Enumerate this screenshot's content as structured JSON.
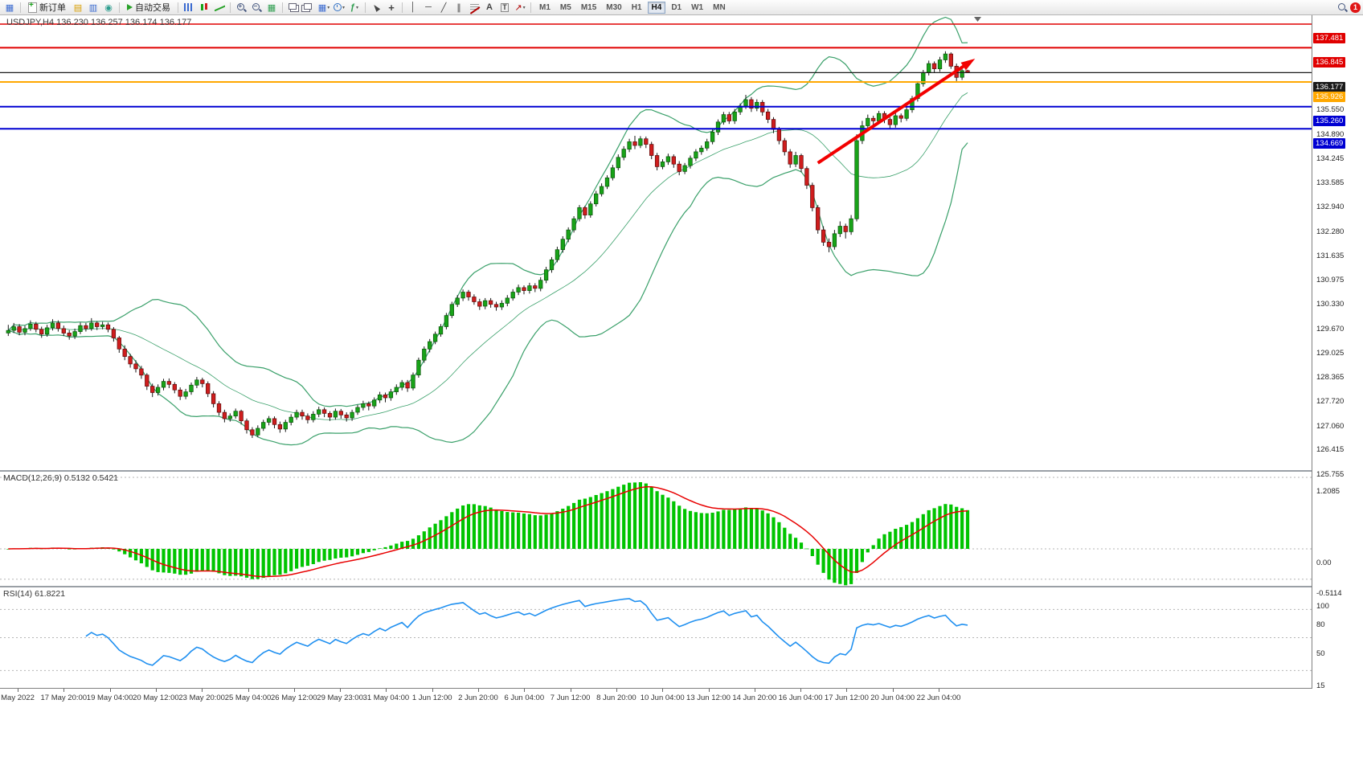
{
  "toolbar": {
    "new_order_label": "新订单",
    "auto_trading_label": "自动交易",
    "timeframes": [
      "M1",
      "M5",
      "M15",
      "M30",
      "H1",
      "H4",
      "D1",
      "W1",
      "MN"
    ],
    "active_timeframe": "H4",
    "notification_badge": "1"
  },
  "chart": {
    "title": "USDJPY,H4 136.230 136.257 136.174 136.177",
    "symbol_period": "USDJPY,H4",
    "ohlc": {
      "open": "136.230",
      "high": "136.257",
      "low": "136.174",
      "close": "136.177"
    },
    "price_axis_ticks": [
      "135.550",
      "134.890",
      "134.245",
      "133.585",
      "132.940",
      "132.280",
      "131.635",
      "130.975",
      "130.330",
      "129.670",
      "129.025",
      "128.365",
      "127.720",
      "127.060",
      "126.415",
      "125.755"
    ],
    "level_lines": [
      {
        "price": 137.481,
        "label": "137.481",
        "color": "#e00000",
        "width": 1.6
      },
      {
        "price": 136.845,
        "label": "136.845",
        "color": "#e00000",
        "width": 2
      },
      {
        "price": 136.177,
        "label": "136.177",
        "color": "#1a1a1a",
        "width": 1.2
      },
      {
        "price": 135.926,
        "label": "135.926",
        "color": "#ffa800",
        "width": 2
      },
      {
        "price": 135.26,
        "label": "135.260",
        "color": "#0000d2",
        "width": 2
      },
      {
        "price": 134.669,
        "label": "134.669",
        "color": "#0000d2",
        "width": 2
      }
    ],
    "trend_arrow": {
      "from_bar": 146,
      "from_price": 133.75,
      "to_bar": 173.5,
      "to_price": 136.47,
      "color": "#f20000"
    }
  },
  "macd": {
    "label": "MACD(12,26,9) 0.5132 0.5421",
    "main_value": "0.5132",
    "signal_value": "0.5421",
    "axis": [
      "1.2085",
      "0.00",
      "-0.5114"
    ]
  },
  "rsi": {
    "label": "RSI(14) 61.8221",
    "value": "61.8221",
    "axis": [
      "100",
      "80",
      "50",
      "15"
    ],
    "levels": [
      80,
      50,
      15
    ]
  },
  "time_axis": {
    "labels": [
      "May 2022",
      "17 May 20:00",
      "19 May 04:00",
      "20 May 12:00",
      "23 May 20:00",
      "25 May 04:00",
      "26 May 12:00",
      "29 May 23:00",
      "31 May 04:00",
      "1 Jun 12:00",
      "2 Jun 20:00",
      "6 Jun 04:00",
      "7 Jun 12:00",
      "8 Jun 20:00",
      "10 Jun 04:00",
      "13 Jun 12:00",
      "14 Jun 20:00",
      "16 Jun 04:00",
      "17 Jun 12:00",
      "20 Jun 04:00",
      "22 Jun 04:00"
    ]
  },
  "chart_data": {
    "type": "candlestick",
    "symbol": "USDJPY",
    "timeframe": "H4",
    "indicators": [
      "Bollinger Bands",
      "MACD(12,26,9)",
      "RSI(14)"
    ],
    "price_range_visible": [
      125.5,
      137.74
    ],
    "colors": {
      "up": "#18a318",
      "down": "#cf1d1d",
      "wick": "#1a1a1a",
      "bollinger": "#3aa06a",
      "macd_hist": "#00c400",
      "macd_signal": "#e80000",
      "rsi_line": "#2090f0"
    },
    "candles": [
      [
        129.18,
        129.4,
        129.1,
        129.25
      ],
      [
        129.25,
        129.45,
        129.18,
        129.35
      ],
      [
        129.35,
        129.42,
        129.12,
        129.2
      ],
      [
        129.2,
        129.38,
        129.12,
        129.3
      ],
      [
        129.3,
        129.52,
        129.24,
        129.42
      ],
      [
        129.42,
        129.48,
        129.2,
        129.28
      ],
      [
        129.28,
        129.35,
        129.05,
        129.15
      ],
      [
        129.15,
        129.4,
        129.08,
        129.32
      ],
      [
        129.32,
        129.55,
        129.25,
        129.45
      ],
      [
        129.45,
        129.52,
        129.22,
        129.3
      ],
      [
        129.3,
        129.38,
        129.1,
        129.18
      ],
      [
        129.18,
        129.26,
        129.0,
        129.1
      ],
      [
        129.1,
        129.3,
        129.02,
        129.22
      ],
      [
        129.22,
        129.46,
        129.15,
        129.38
      ],
      [
        129.38,
        129.45,
        129.22,
        129.3
      ],
      [
        129.3,
        129.58,
        129.24,
        129.45
      ],
      [
        129.45,
        129.5,
        129.26,
        129.35
      ],
      [
        129.35,
        129.48,
        129.28,
        129.4
      ],
      [
        129.4,
        129.46,
        129.2,
        129.28
      ],
      [
        129.28,
        129.34,
        128.95,
        129.05
      ],
      [
        129.05,
        129.1,
        128.65,
        128.75
      ],
      [
        128.75,
        128.85,
        128.45,
        128.55
      ],
      [
        128.55,
        128.62,
        128.25,
        128.35
      ],
      [
        128.35,
        128.45,
        128.12,
        128.22
      ],
      [
        128.22,
        128.3,
        127.95,
        128.05
      ],
      [
        128.05,
        128.1,
        127.65,
        127.75
      ],
      [
        127.75,
        127.82,
        127.46,
        127.58
      ],
      [
        127.58,
        127.8,
        127.5,
        127.72
      ],
      [
        127.72,
        127.95,
        127.64,
        127.88
      ],
      [
        127.88,
        127.96,
        127.7,
        127.8
      ],
      [
        127.8,
        127.86,
        127.56,
        127.65
      ],
      [
        127.65,
        127.72,
        127.38,
        127.48
      ],
      [
        127.48,
        127.68,
        127.4,
        127.6
      ],
      [
        127.6,
        127.85,
        127.52,
        127.78
      ],
      [
        127.78,
        128.0,
        127.7,
        127.92
      ],
      [
        127.92,
        127.98,
        127.72,
        127.82
      ],
      [
        127.82,
        127.88,
        127.46,
        127.55
      ],
      [
        127.55,
        127.62,
        127.18,
        127.28
      ],
      [
        127.28,
        127.35,
        126.96,
        127.05
      ],
      [
        127.05,
        127.12,
        126.78,
        126.88
      ],
      [
        126.88,
        127.02,
        126.8,
        126.95
      ],
      [
        126.95,
        127.15,
        126.88,
        127.08
      ],
      [
        127.08,
        127.12,
        126.72,
        126.82
      ],
      [
        126.82,
        126.88,
        126.48,
        126.58
      ],
      [
        126.58,
        126.65,
        126.36,
        126.44
      ],
      [
        126.44,
        126.7,
        126.38,
        126.62
      ],
      [
        126.62,
        126.85,
        126.55,
        126.78
      ],
      [
        126.78,
        126.95,
        126.7,
        126.88
      ],
      [
        126.88,
        126.94,
        126.62,
        126.72
      ],
      [
        126.72,
        126.8,
        126.5,
        126.6
      ],
      [
        126.6,
        126.85,
        126.52,
        126.78
      ],
      [
        126.78,
        127.0,
        126.7,
        126.92
      ],
      [
        126.92,
        127.12,
        126.85,
        127.05
      ],
      [
        127.05,
        127.12,
        126.85,
        126.95
      ],
      [
        126.95,
        127.02,
        126.75,
        126.85
      ],
      [
        126.85,
        127.08,
        126.78,
        127.0
      ],
      [
        127.0,
        127.2,
        126.92,
        127.12
      ],
      [
        127.12,
        127.18,
        126.92,
        127.02
      ],
      [
        127.02,
        127.08,
        126.82,
        126.92
      ],
      [
        126.92,
        127.15,
        126.85,
        127.08
      ],
      [
        127.08,
        127.14,
        126.88,
        126.98
      ],
      [
        126.98,
        127.05,
        126.8,
        126.9
      ],
      [
        126.9,
        127.12,
        126.82,
        127.05
      ],
      [
        127.05,
        127.25,
        126.98,
        127.18
      ],
      [
        127.18,
        127.36,
        127.1,
        127.28
      ],
      [
        127.28,
        127.34,
        127.1,
        127.22
      ],
      [
        127.22,
        127.45,
        127.15,
        127.38
      ],
      [
        127.38,
        127.6,
        127.3,
        127.52
      ],
      [
        127.52,
        127.58,
        127.32,
        127.44
      ],
      [
        127.44,
        127.68,
        127.36,
        127.6
      ],
      [
        127.6,
        127.8,
        127.52,
        127.72
      ],
      [
        127.72,
        127.92,
        127.64,
        127.85
      ],
      [
        127.85,
        127.92,
        127.6,
        127.7
      ],
      [
        127.7,
        128.12,
        127.64,
        128.05
      ],
      [
        128.05,
        128.52,
        127.98,
        128.45
      ],
      [
        128.45,
        128.82,
        128.38,
        128.75
      ],
      [
        128.75,
        129.02,
        128.66,
        128.95
      ],
      [
        128.95,
        129.22,
        128.88,
        129.15
      ],
      [
        129.15,
        129.42,
        129.08,
        129.35
      ],
      [
        129.35,
        129.72,
        129.28,
        129.65
      ],
      [
        129.65,
        130.02,
        129.58,
        129.95
      ],
      [
        129.95,
        130.2,
        129.88,
        130.12
      ],
      [
        130.12,
        130.35,
        130.04,
        130.28
      ],
      [
        130.28,
        130.34,
        130.05,
        130.15
      ],
      [
        130.15,
        130.22,
        129.94,
        130.02
      ],
      [
        130.02,
        130.1,
        129.8,
        129.9
      ],
      [
        129.9,
        130.12,
        129.82,
        130.05
      ],
      [
        130.05,
        130.12,
        129.86,
        129.95
      ],
      [
        129.95,
        130.02,
        129.78,
        129.88
      ],
      [
        129.88,
        130.06,
        129.8,
        129.98
      ],
      [
        129.98,
        130.2,
        129.9,
        130.12
      ],
      [
        130.12,
        130.36,
        130.05,
        130.28
      ],
      [
        130.28,
        130.48,
        130.2,
        130.4
      ],
      [
        130.4,
        130.46,
        130.22,
        130.32
      ],
      [
        130.32,
        130.53,
        130.24,
        130.45
      ],
      [
        130.45,
        130.52,
        130.28,
        130.38
      ],
      [
        130.38,
        130.68,
        130.3,
        130.6
      ],
      [
        130.6,
        130.96,
        130.52,
        130.88
      ],
      [
        130.88,
        131.22,
        130.8,
        131.15
      ],
      [
        131.15,
        131.5,
        131.08,
        131.42
      ],
      [
        131.42,
        131.78,
        131.34,
        131.7
      ],
      [
        131.7,
        132.02,
        131.62,
        131.95
      ],
      [
        131.95,
        132.32,
        131.88,
        132.25
      ],
      [
        132.25,
        132.62,
        132.18,
        132.55
      ],
      [
        132.55,
        132.6,
        132.25,
        132.35
      ],
      [
        132.35,
        132.72,
        132.28,
        132.65
      ],
      [
        132.65,
        133.0,
        132.58,
        132.92
      ],
      [
        132.92,
        133.2,
        132.85,
        133.12
      ],
      [
        133.12,
        133.42,
        133.05,
        133.35
      ],
      [
        133.35,
        133.7,
        133.28,
        133.62
      ],
      [
        133.62,
        133.98,
        133.55,
        133.9
      ],
      [
        133.9,
        134.2,
        133.82,
        134.12
      ],
      [
        134.12,
        134.4,
        134.04,
        134.32
      ],
      [
        134.32,
        134.48,
        134.12,
        134.22
      ],
      [
        134.22,
        134.47,
        134.15,
        134.4
      ],
      [
        134.4,
        134.46,
        134.15,
        134.25
      ],
      [
        134.25,
        134.32,
        133.85,
        133.95
      ],
      [
        133.95,
        134.02,
        133.55,
        133.65
      ],
      [
        133.65,
        133.85,
        133.58,
        133.78
      ],
      [
        133.78,
        134.0,
        133.7,
        133.92
      ],
      [
        133.92,
        133.98,
        133.62,
        133.72
      ],
      [
        133.72,
        133.8,
        133.42,
        133.52
      ],
      [
        133.52,
        133.75,
        133.45,
        133.68
      ],
      [
        133.68,
        133.95,
        133.6,
        133.88
      ],
      [
        133.88,
        134.12,
        133.8,
        134.05
      ],
      [
        134.05,
        134.22,
        133.97,
        134.15
      ],
      [
        134.15,
        134.4,
        134.08,
        134.32
      ],
      [
        134.32,
        134.65,
        134.25,
        134.58
      ],
      [
        134.58,
        134.92,
        134.5,
        134.85
      ],
      [
        134.85,
        135.12,
        134.78,
        135.05
      ],
      [
        135.05,
        135.12,
        134.8,
        134.88
      ],
      [
        134.88,
        135.2,
        134.8,
        135.12
      ],
      [
        135.12,
        135.35,
        135.04,
        135.28
      ],
      [
        135.28,
        135.58,
        135.2,
        135.45
      ],
      [
        135.45,
        135.52,
        135.12,
        135.22
      ],
      [
        135.22,
        135.46,
        135.14,
        135.38
      ],
      [
        135.38,
        135.44,
        135.02,
        135.12
      ],
      [
        135.12,
        135.2,
        134.82,
        134.92
      ],
      [
        134.92,
        134.98,
        134.55,
        134.65
      ],
      [
        134.65,
        134.72,
        134.25,
        134.35
      ],
      [
        134.35,
        134.42,
        133.95,
        134.05
      ],
      [
        134.05,
        134.12,
        133.62,
        133.72
      ],
      [
        133.72,
        134.05,
        133.64,
        133.95
      ],
      [
        133.95,
        134.0,
        133.5,
        133.6
      ],
      [
        133.6,
        133.66,
        133.05,
        133.15
      ],
      [
        133.15,
        133.22,
        132.45,
        132.55
      ],
      [
        132.55,
        132.62,
        131.85,
        131.95
      ],
      [
        131.95,
        132.05,
        131.52,
        131.62
      ],
      [
        131.62,
        131.72,
        131.35,
        131.5
      ],
      [
        131.5,
        131.95,
        131.42,
        131.85
      ],
      [
        131.85,
        132.18,
        131.76,
        132.05
      ],
      [
        132.05,
        132.12,
        131.72,
        131.9
      ],
      [
        131.9,
        132.35,
        131.82,
        132.25
      ],
      [
        132.25,
        134.52,
        132.18,
        134.35
      ],
      [
        134.35,
        134.88,
        134.26,
        134.75
      ],
      [
        134.75,
        135.05,
        134.65,
        134.95
      ],
      [
        134.95,
        135.02,
        134.72,
        134.88
      ],
      [
        134.88,
        135.15,
        134.8,
        135.08
      ],
      [
        135.08,
        135.14,
        134.82,
        134.92
      ],
      [
        134.92,
        134.98,
        134.66,
        134.78
      ],
      [
        134.78,
        135.1,
        134.7,
        135.02
      ],
      [
        135.02,
        135.08,
        134.84,
        134.95
      ],
      [
        134.95,
        135.25,
        134.88,
        135.18
      ],
      [
        135.18,
        135.55,
        135.1,
        135.48
      ],
      [
        135.48,
        135.95,
        135.4,
        135.88
      ],
      [
        135.88,
        136.25,
        135.8,
        136.18
      ],
      [
        136.18,
        136.5,
        136.1,
        136.42
      ],
      [
        136.42,
        136.48,
        136.18,
        136.28
      ],
      [
        136.28,
        136.6,
        136.2,
        136.52
      ],
      [
        136.52,
        136.75,
        136.44,
        136.68
      ],
      [
        136.68,
        136.72,
        136.28,
        136.35
      ],
      [
        136.35,
        136.42,
        135.95,
        136.05
      ],
      [
        136.05,
        136.32,
        135.98,
        136.23
      ],
      [
        136.23,
        136.257,
        136.174,
        136.177
      ]
    ]
  }
}
